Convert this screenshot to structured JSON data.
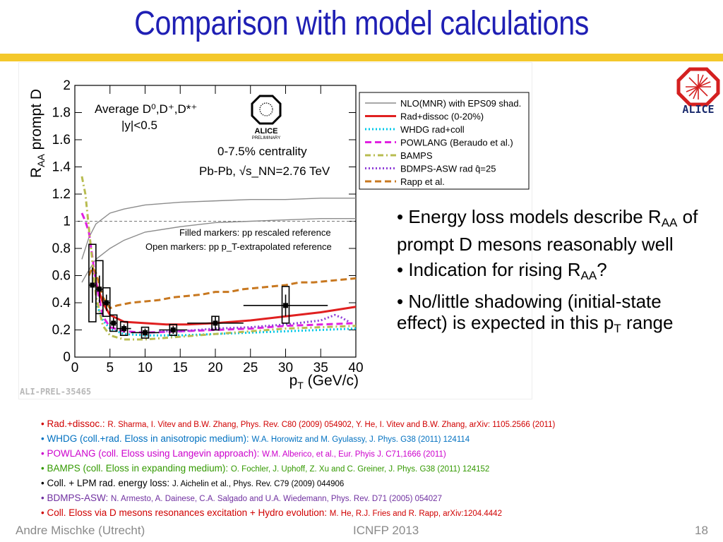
{
  "slide": {
    "title": "Comparison with model calculations",
    "logo_text": "ALICE",
    "footer_left": "Andre Mischke (Utrecht)",
    "footer_center": "ICNFP 2013",
    "page_number": "18",
    "watermark": "ALI-PREL-35465"
  },
  "bullets": [
    {
      "pre": "• Energy loss models describe R",
      "sub": "AA",
      "post": " of prompt D mesons reasonably well"
    },
    {
      "pre": "• Indication for rising R",
      "sub": "AA",
      "post": "?"
    },
    {
      "pre": "• No/little shadowing (initial-state effect) is expected in this p",
      "sub": "T",
      "post": " range"
    }
  ],
  "references": [
    {
      "model": "• Rad.+dissoc.: ",
      "cite": "R. Sharma, I. Vitev and B.W. Zhang, Phys. Rev. C80 (2009) 054902, Y. He, I. Vitev and B.W. Zhang, arXiv: 1105.2566 (2011)",
      "color": "#d00000"
    },
    {
      "model": "• WHDG (coll.+rad. Eloss in anisotropic medium): ",
      "cite": "W.A. Horowitz and M. Gyulassy, J. Phys. G38 (2011) 124114",
      "color": "#0070c0"
    },
    {
      "model": "• POWLANG (coll. Eloss using Langevin approach): ",
      "cite": "W.M. Alberico,  et al., Eur. Phyis J. C71,1666 (2011)",
      "color": "#cc00cc"
    },
    {
      "model": "• BAMPS (coll. Eloss in expanding medium): ",
      "cite": "O. Fochler, J. Uphoff, Z. Xu and C. Greiner, J. Phys. G38 (2011) 124152",
      "color": "#339900"
    },
    {
      "model": "• Coll. + LPM rad. energy loss: ",
      "cite": "J. Aichelin et al., Phys. Rev. C79 (2009) 044906",
      "color": "#000000"
    },
    {
      "model": "• BDMPS-ASW: ",
      "cite": "N. Armesto, A. Dainese, C.A. Salgado and U.A. Wiedemann, Phys. Rev. D71 (2005) 054027",
      "color": "#7030a0"
    },
    {
      "model": "• Coll. Eloss via D mesons resonances excitation + Hydro evolution: ",
      "cite": "M. He, R.J. Fries and R. Rapp, arXiv:1204.4442",
      "color": "#d00000"
    }
  ],
  "chart_data": {
    "type": "scatter",
    "xlabel": "p_T (GeV/c)",
    "ylabel": "R_AA prompt D",
    "xlim": [
      0,
      40
    ],
    "ylim": [
      0,
      2
    ],
    "x_ticks": [
      "0",
      "5",
      "10",
      "15",
      "20",
      "25",
      "30",
      "35",
      "40"
    ],
    "y_ticks": [
      "0",
      "0.2",
      "0.4",
      "0.6",
      "0.8",
      "1",
      "1.2",
      "1.4",
      "1.6",
      "1.8",
      "2"
    ],
    "reference_line_y": 1,
    "annotations": {
      "meson": "Average D⁰,D⁺,D*⁺",
      "rapidity": "|y|<0.5",
      "centrality": "0-7.5% centrality",
      "system": "Pb-Pb, √s_NN=2.76 TeV",
      "filled": "Filled markers: pp rescaled reference",
      "open": "Open markers: pp p_T-extrapolated reference",
      "logo": "ALICE",
      "logo_sub": "PRELIMINARY"
    },
    "series": [
      {
        "name": "NLO(MNR) with EPS09 shad.",
        "color": "#8c8c8c",
        "style": "band",
        "x": [
          1,
          2,
          3,
          5,
          7,
          10,
          15,
          20,
          25,
          30,
          35,
          40
        ],
        "upper": [
          0.72,
          0.88,
          0.98,
          1.06,
          1.09,
          1.12,
          1.14,
          1.15,
          1.16,
          1.16,
          1.17,
          1.17
        ],
        "lower": [
          0.55,
          0.64,
          0.72,
          0.8,
          0.86,
          0.92,
          0.96,
          0.99,
          1.0,
          1.01,
          1.02,
          1.02
        ]
      },
      {
        "name": "Rad+dissoc (0-20%)",
        "color": "#e02020",
        "style": "solid",
        "x": [
          3,
          4,
          5,
          7,
          10,
          13,
          16,
          20,
          25,
          30,
          35,
          40
        ],
        "y": [
          0.55,
          0.4,
          0.31,
          0.26,
          0.25,
          0.24,
          0.24,
          0.25,
          0.27,
          0.3,
          0.33,
          0.37
        ]
      },
      {
        "name": "WHDG rad+coll",
        "color": "#00c8e8",
        "style": "dotted",
        "x": [
          3,
          4,
          5,
          7,
          10,
          15,
          20,
          25,
          30,
          35,
          40
        ],
        "y": [
          0.4,
          0.27,
          0.21,
          0.17,
          0.16,
          0.16,
          0.17,
          0.18,
          0.19,
          0.2,
          0.21
        ]
      },
      {
        "name": "POWLANG (Beraudo et al.)",
        "color": "#e020e0",
        "style": "dashed",
        "x": [
          1,
          1.5,
          2,
          3,
          4,
          5,
          7,
          10,
          15,
          20,
          25,
          30,
          35,
          40
        ],
        "y": [
          1.06,
          1.0,
          0.92,
          0.55,
          0.3,
          0.22,
          0.19,
          0.18,
          0.19,
          0.2,
          0.21,
          0.23,
          0.24,
          0.25
        ]
      },
      {
        "name": "BAMPS",
        "color": "#b8bc50",
        "style": "dashdot",
        "x": [
          1,
          1.5,
          2,
          3,
          4,
          5,
          7,
          10,
          15,
          20,
          25,
          30,
          35,
          40
        ],
        "y": [
          1.33,
          1.2,
          0.95,
          0.45,
          0.23,
          0.16,
          0.13,
          0.13,
          0.15,
          0.17,
          0.19,
          0.21,
          0.22,
          0.23
        ]
      },
      {
        "name": "BDMPS-ASW rad q̂=25",
        "color": "#9040d8",
        "style": "dotted",
        "x": [
          12,
          15,
          20,
          25,
          30,
          35,
          37,
          38,
          39
        ],
        "y": [
          0.19,
          0.19,
          0.21,
          0.22,
          0.24,
          0.27,
          0.31,
          0.29,
          0.26
        ]
      },
      {
        "name": "Rapp et al.",
        "color": "#c87820",
        "style": "dashed",
        "x": [
          2,
          2.5,
          3,
          4,
          5,
          6,
          8,
          10,
          12,
          14,
          16,
          18,
          20,
          22,
          24,
          26,
          28,
          30,
          32,
          34,
          36,
          38,
          40
        ],
        "y": [
          0.6,
          0.66,
          0.62,
          0.44,
          0.36,
          0.38,
          0.4,
          0.41,
          0.42,
          0.44,
          0.45,
          0.46,
          0.48,
          0.48,
          0.5,
          0.51,
          0.52,
          0.53,
          0.55,
          0.55,
          0.56,
          0.57,
          0.58
        ]
      }
    ],
    "measurement": {
      "name": "ALICE prompt D",
      "x": [
        2.5,
        3.5,
        4.5,
        5.5,
        7,
        10,
        14,
        20,
        30
      ],
      "xerr": [
        0.5,
        0.5,
        0.5,
        0.5,
        1,
        2,
        2,
        4,
        6
      ],
      "y": [
        0.53,
        0.5,
        0.4,
        0.25,
        0.21,
        0.18,
        0.2,
        0.25,
        0.38
      ],
      "stat": [
        0.13,
        0.1,
        0.06,
        0.04,
        0.03,
        0.03,
        0.03,
        0.05,
        0.08
      ],
      "syst_lo": [
        0.27,
        0.18,
        0.1,
        0.06,
        0.05,
        0.04,
        0.04,
        0.05,
        0.13
      ],
      "syst_hi": [
        0.3,
        0.21,
        0.11,
        0.06,
        0.05,
        0.04,
        0.04,
        0.05,
        0.14
      ]
    }
  }
}
